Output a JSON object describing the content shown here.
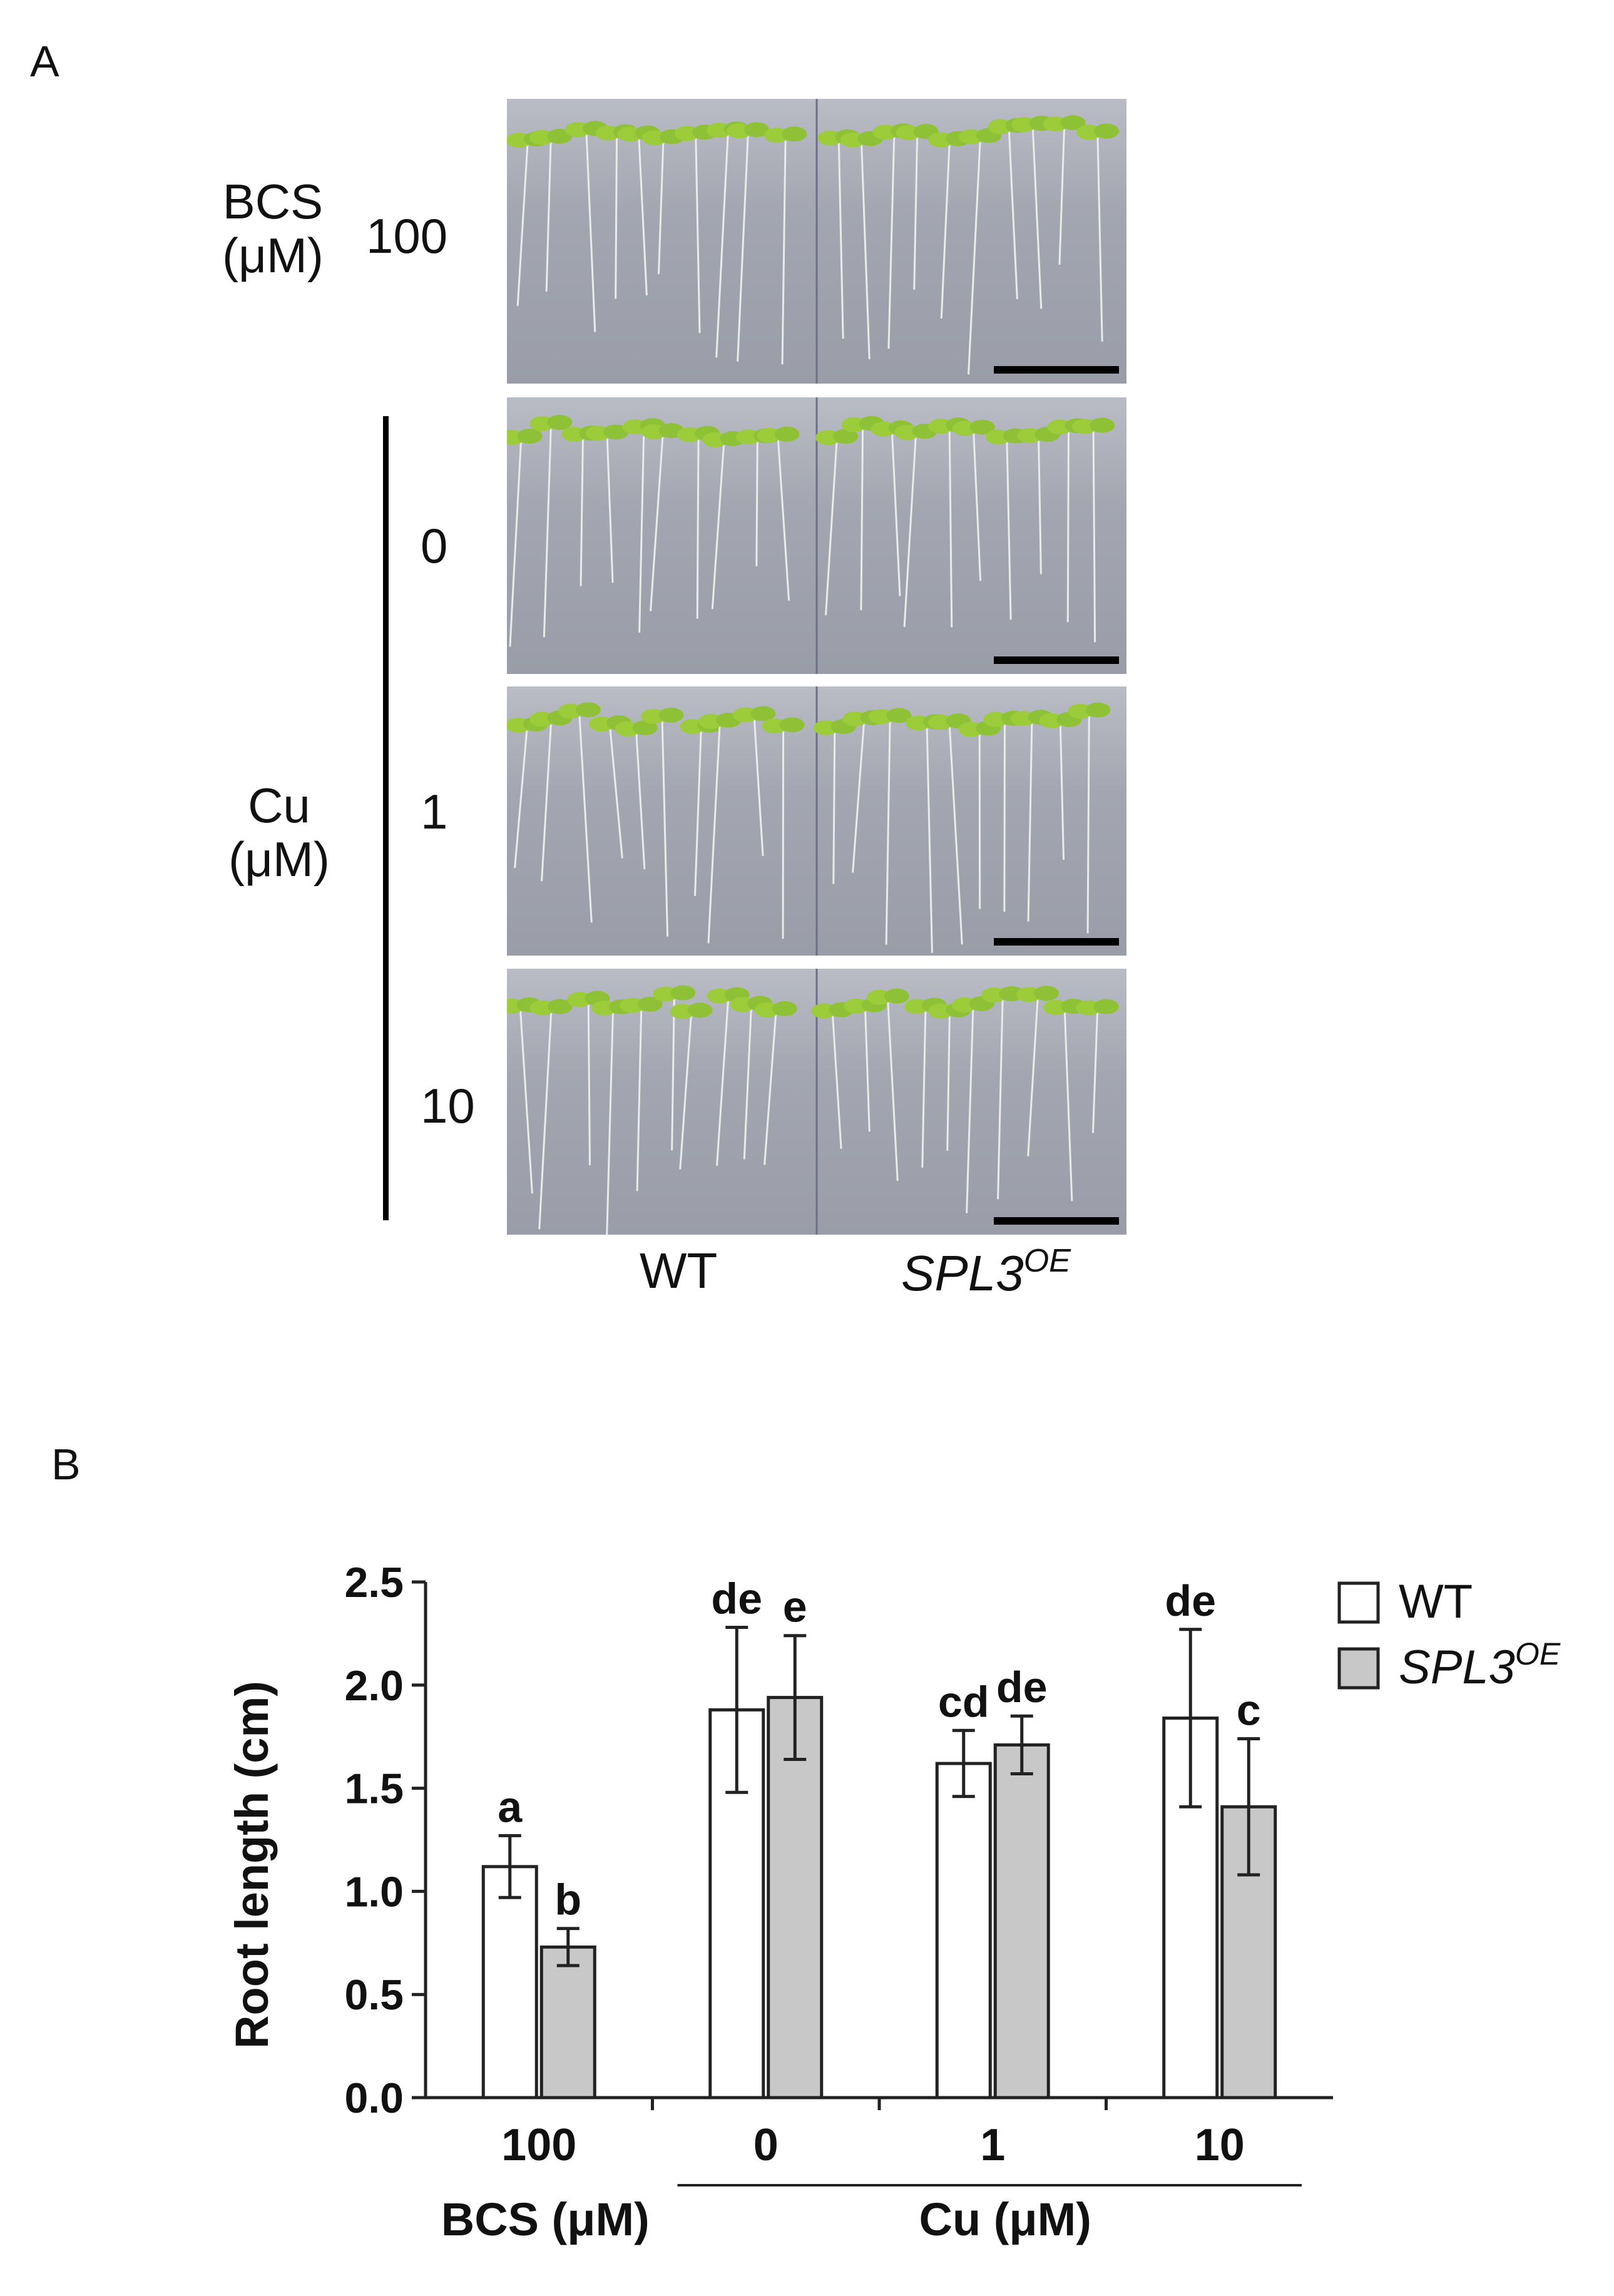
{
  "panel_a": {
    "label": "A",
    "bcs_label_line1": "BCS",
    "bcs_label_line2": "(μM)",
    "bcs_value": "100",
    "cu_label_line1": "Cu",
    "cu_label_line2": "(μM)",
    "cu_values": [
      "0",
      "1",
      "10"
    ],
    "genotype_wt": "WT",
    "genotype_spl3": "SPL3",
    "genotype_spl3_sup": "OE"
  },
  "panel_b": {
    "label": "B"
  },
  "colors": {
    "wt_fill": "#ffffff",
    "spl3_fill": "#c8c8c8",
    "photo_background": "#a3a6b0",
    "seedling_green": "#9ccc3a"
  },
  "chart_data": {
    "type": "bar",
    "ylabel": "Root length (cm)",
    "ylim": [
      0,
      2.5
    ],
    "yticks": [
      "0.0",
      "0.5",
      "1.0",
      "1.5",
      "2.0",
      "2.5"
    ],
    "categories": [
      "100",
      "0",
      "1",
      "10"
    ],
    "group_labels": [
      "BCS (μM)",
      "Cu (μM)"
    ],
    "series": [
      {
        "name": "WT",
        "values": [
          1.12,
          1.88,
          1.62,
          1.84
        ],
        "errors": [
          0.15,
          0.4,
          0.16,
          0.43
        ],
        "letters": [
          "a",
          "de",
          "cd",
          "de"
        ]
      },
      {
        "name": "SPL3",
        "name_sup": "OE",
        "values": [
          0.73,
          1.94,
          1.71,
          1.41
        ],
        "errors": [
          0.09,
          0.3,
          0.14,
          0.33
        ],
        "letters": [
          "b",
          "e",
          "de",
          "c"
        ]
      }
    ],
    "legend_position": "top-right"
  }
}
